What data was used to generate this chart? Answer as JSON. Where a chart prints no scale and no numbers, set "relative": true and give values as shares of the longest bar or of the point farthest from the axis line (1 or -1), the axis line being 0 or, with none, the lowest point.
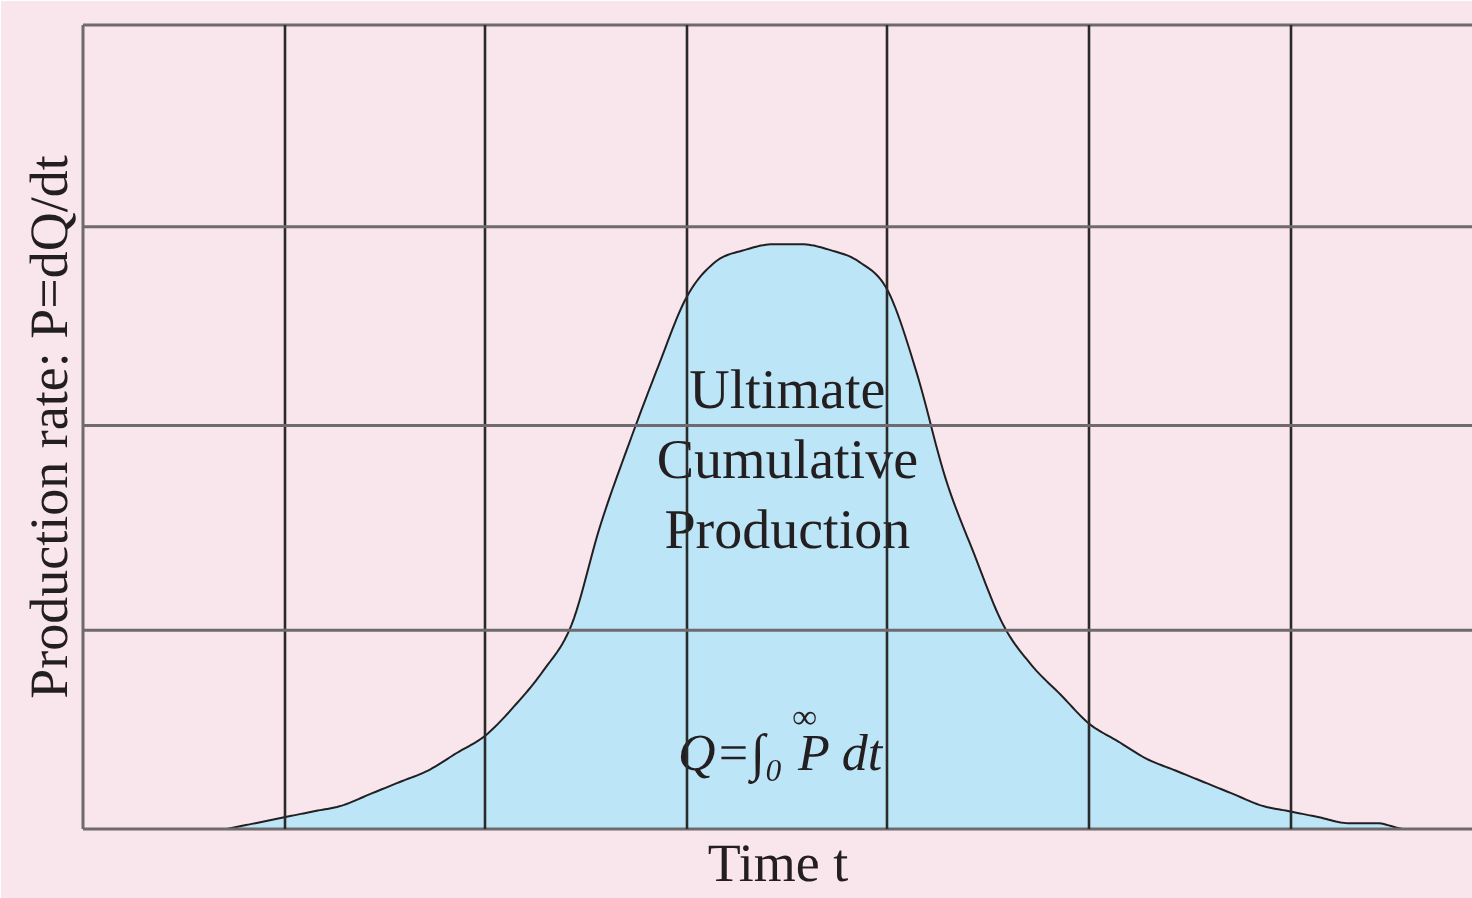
{
  "chart_data": {
    "type": "area",
    "relative": true,
    "grid": "x",
    "xlabel": "Time t",
    "ylabel": "Production rate: P=dQ/dt",
    "annotations": [
      "Ultimate Cumulative Production",
      "Q=∫₀$^{∞}$P dt"
    ],
    "ref_lines": [
      {
        "axis": "y",
        "value": 0.34,
        "color": "#6e6a6d"
      },
      {
        "axis": "y",
        "value": 0.69,
        "color": "#6e6a6d"
      },
      {
        "axis": "y",
        "value": 1.03,
        "color": "#6e6a6d"
      }
    ],
    "categories": [
      null,
      null,
      null,
      null,
      null,
      null,
      null,
      null,
      null,
      null,
      null,
      null,
      null,
      null,
      null,
      null,
      null,
      null,
      null,
      null,
      null,
      null,
      null,
      null,
      null,
      null,
      null,
      null,
      null,
      null,
      null,
      null,
      null,
      null,
      null,
      null,
      null,
      null,
      null,
      null,
      null,
      null,
      null
    ],
    "color": "#bde5f8",
    "values": [
      0,
      0.01,
      0.02,
      0.03,
      0.04,
      0.06,
      0.08,
      0.1,
      0.13,
      0.16,
      0.21,
      0.27,
      0.35,
      0.52,
      0.66,
      0.79,
      0.91,
      0.97,
      0.99,
      1,
      1,
      0.99,
      0.97,
      0.92,
      0.78,
      0.6,
      0.47,
      0.35,
      0.28,
      0.23,
      0.18,
      0.15,
      0.12,
      0.1,
      0.08,
      0.06,
      0.04,
      0.03,
      0.02,
      0.01,
      0.01,
      0,
      0
    ]
  }
}
